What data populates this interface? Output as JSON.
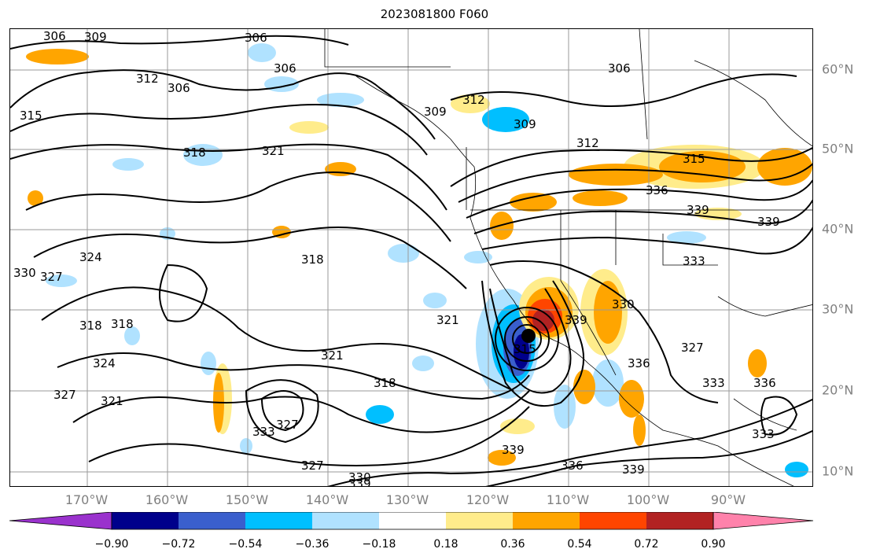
{
  "title": "2023081800 F060",
  "lon_labels": [
    "170°W",
    "160°W",
    "150°W",
    "140°W",
    "130°W",
    "120°W",
    "110°W",
    "100°W",
    "90°W"
  ],
  "lat_labels": [
    "60°N",
    "50°N",
    "40°N",
    "30°N",
    "20°N",
    "10°N"
  ],
  "colorbar": {
    "colors": [
      "#9a32cd",
      "#00008b",
      "#3a5fcd",
      "#00bfff",
      "#b0e2ff",
      "#ffffff",
      "#ffec8b",
      "#ffa500",
      "#ff4500",
      "#b22222",
      "#ff82ab"
    ],
    "tick_labels": [
      "−0.90",
      "−0.72",
      "−0.54",
      "−0.36",
      "−0.18",
      "0.18",
      "0.36",
      "0.54",
      "0.72",
      "0.90"
    ]
  },
  "contour_labels": [
    "306",
    "309",
    "312",
    "315",
    "318",
    "321",
    "324",
    "327",
    "330",
    "333",
    "336",
    "339"
  ],
  "storm_marker": "hurricane-center"
}
